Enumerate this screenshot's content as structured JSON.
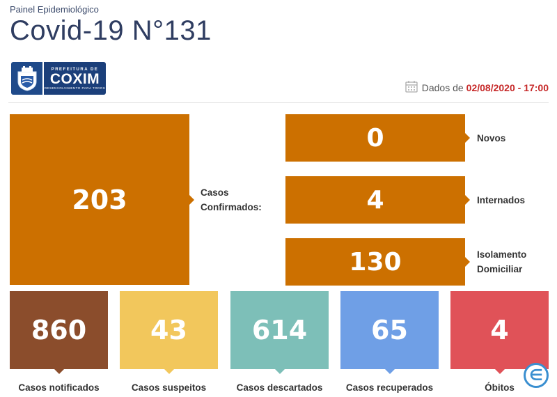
{
  "header": {
    "kicker": "Painel Epidemiológico",
    "title": "Covid-19 N°131"
  },
  "logo": {
    "prefix": "PREFEITURA DE",
    "name": "COXIM",
    "tagline": "DESENVOLVIMENTO PARA TODOS",
    "icon": "city-crest-icon"
  },
  "dateline": {
    "prefix": "Dados de",
    "date": "02/08/2020 - 17:00",
    "icon": "calendar-icon"
  },
  "confirmed": {
    "value": "203",
    "label_line1": "Casos",
    "label_line2": "Confirmados:",
    "color": "#cc7000"
  },
  "breakdown": [
    {
      "value": "0",
      "label_line1": "Novos",
      "label_line2": ""
    },
    {
      "value": "4",
      "label_line1": "Internados",
      "label_line2": ""
    },
    {
      "value": "130",
      "label_line1": "Isolamento",
      "label_line2": "Domiciliar"
    }
  ],
  "stats": [
    {
      "value": "860",
      "label": "Casos notificados",
      "color": "#8b4d2c"
    },
    {
      "value": "43",
      "label": "Casos suspeitos",
      "color": "#f2c75c"
    },
    {
      "value": "614",
      "label": "Casos descartados",
      "color": "#7dbfb8"
    },
    {
      "value": "65",
      "label": "Casos recuperados",
      "color": "#6f9fe6"
    },
    {
      "value": "4",
      "label": "Óbitos",
      "color": "#e05258"
    }
  ]
}
